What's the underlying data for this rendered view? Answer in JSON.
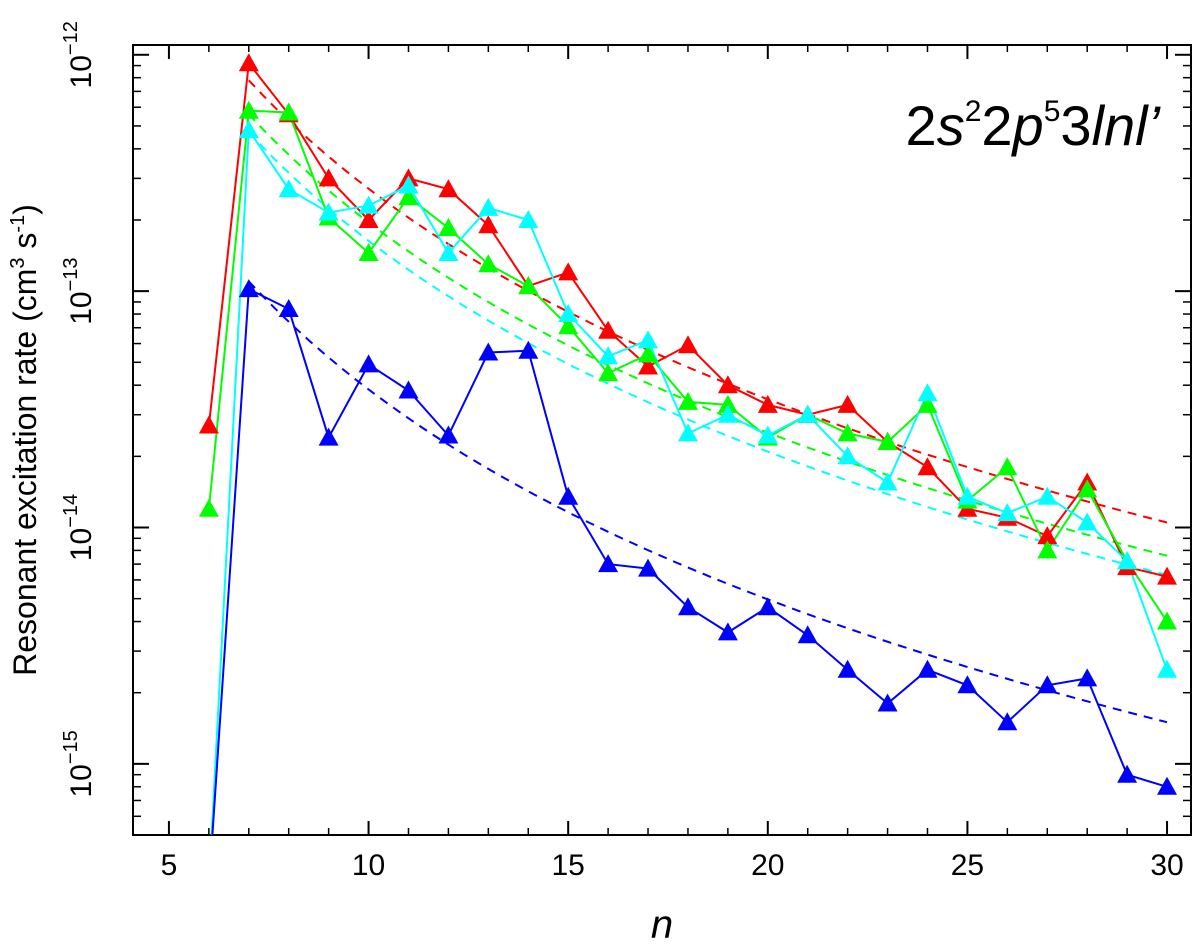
{
  "chart_data": {
    "type": "line",
    "ylabel_main": "Resonant excitation rate (cm",
    "ylabel_sup1": "3",
    "ylabel_mid": " s",
    "ylabel_sup2": "-1",
    "ylabel_end": ")",
    "xlabel": "n",
    "annotation": {
      "p1": "2",
      "p2": "s",
      "p3": "2",
      "p4": "2",
      "p5": "p",
      "p6": "5",
      "p7": "3",
      "p8": "lnl’"
    },
    "x_ticks": [
      "5",
      "10",
      "15",
      "20",
      "25",
      "30"
    ],
    "y_ticks": [
      {
        "base": "10",
        "exp": "−12",
        "value": 1e-12
      },
      {
        "base": "10",
        "exp": "−13",
        "value": 1e-13
      },
      {
        "base": "10",
        "exp": "−14",
        "value": 1e-14
      },
      {
        "base": "10",
        "exp": "−15",
        "value": 1e-15
      }
    ],
    "xlim": [
      4.1,
      30.6
    ],
    "ylim": [
      5e-16,
      1.1e-12
    ],
    "yscale": "log",
    "grid": false,
    "x": [
      6,
      7,
      8,
      9,
      10,
      11,
      12,
      13,
      14,
      15,
      16,
      17,
      18,
      19,
      20,
      21,
      22,
      23,
      24,
      25,
      26,
      27,
      28,
      29,
      30
    ],
    "series": [
      {
        "color": "#ff0000",
        "values": [
          2.7e-14,
          9.2e-13,
          5.6e-13,
          3e-13,
          2e-13,
          3e-13,
          2.7e-13,
          1.9e-13,
          1.05e-13,
          1.2e-13,
          6.8e-14,
          4.8e-14,
          5.9e-14,
          4e-14,
          3.3e-14,
          3e-14,
          3.3e-14,
          2.3e-14,
          1.8e-14,
          1.2e-14,
          1.1e-14,
          9.2e-15,
          1.55e-14,
          6.8e-15,
          6.2e-15
        ],
        "fit": {
          "x": [
            7,
            30
          ],
          "y": [
            7.8e-13,
            1.05e-14
          ]
        }
      },
      {
        "color": "#00ff00",
        "values": [
          1.2e-14,
          5.8e-13,
          5.7e-13,
          2.05e-13,
          1.45e-13,
          2.5e-13,
          1.85e-13,
          1.3e-13,
          1.05e-13,
          7.1e-14,
          4.5e-14,
          5.4e-14,
          3.4e-14,
          3.3e-14,
          2.4e-14,
          3e-14,
          2.5e-14,
          2.3e-14,
          3.3e-14,
          1.3e-14,
          1.8e-14,
          8e-15,
          1.45e-14,
          7.2e-15,
          4e-15
        ],
        "fit": {
          "x": [
            7,
            30
          ],
          "y": [
            5.6e-13,
            7.6e-15
          ]
        }
      },
      {
        "color": "#00ffff",
        "values": [
          3e-16,
          4.8e-13,
          2.7e-13,
          2.15e-13,
          2.3e-13,
          2.8e-13,
          1.45e-13,
          2.25e-13,
          2e-13,
          8e-14,
          5.3e-14,
          6.2e-14,
          2.5e-14,
          3e-14,
          2.45e-14,
          3e-14,
          2e-14,
          1.55e-14,
          3.7e-14,
          1.35e-14,
          1.15e-14,
          1.35e-14,
          1.05e-14,
          7.2e-15,
          2.5e-15
        ],
        "fit": {
          "x": [
            7,
            30
          ],
          "y": [
            4.7e-13,
            6.3e-15
          ]
        }
      },
      {
        "color": "#0000ff",
        "values": [
          3e-16,
          1.02e-13,
          8.4e-14,
          2.4e-14,
          4.9e-14,
          3.8e-14,
          2.45e-14,
          5.5e-14,
          5.6e-14,
          1.35e-14,
          7e-15,
          6.7e-15,
          4.6e-15,
          3.6e-15,
          4.6e-15,
          3.5e-15,
          2.5e-15,
          1.8e-15,
          2.5e-15,
          2.15e-15,
          1.5e-15,
          2.15e-15,
          2.3e-15,
          9e-16,
          8e-16
        ],
        "fit": {
          "x": [
            7,
            30
          ],
          "y": [
            1.1e-13,
            1.5e-15
          ]
        }
      }
    ]
  }
}
